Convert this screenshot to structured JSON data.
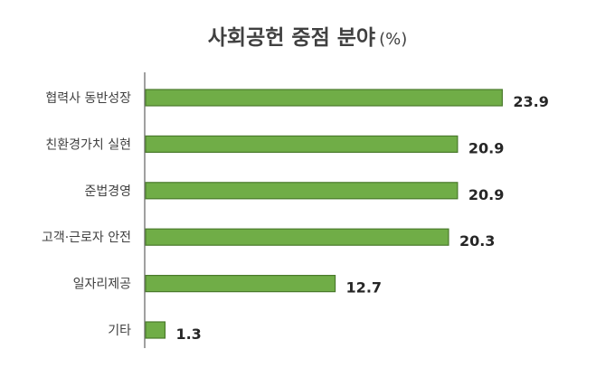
{
  "chart_data": {
    "type": "bar",
    "orientation": "horizontal",
    "title": "사회공헌 중점 분야",
    "unit": "(%)",
    "categories": [
      "협력사 동반성장",
      "친환경가치 실현",
      "준법경영",
      "고객·근로자 안전",
      "일자리제공",
      "기타"
    ],
    "values": [
      23.9,
      20.9,
      20.9,
      20.3,
      12.7,
      1.3
    ],
    "value_labels": [
      "23.9",
      "20.9",
      "20.9",
      "20.3",
      "12.7",
      "1.3"
    ],
    "xlim": [
      0,
      25
    ],
    "grid": false,
    "legend": "none",
    "bar_color": "#70ad47",
    "bar_border_color": "#4a7a2c"
  }
}
